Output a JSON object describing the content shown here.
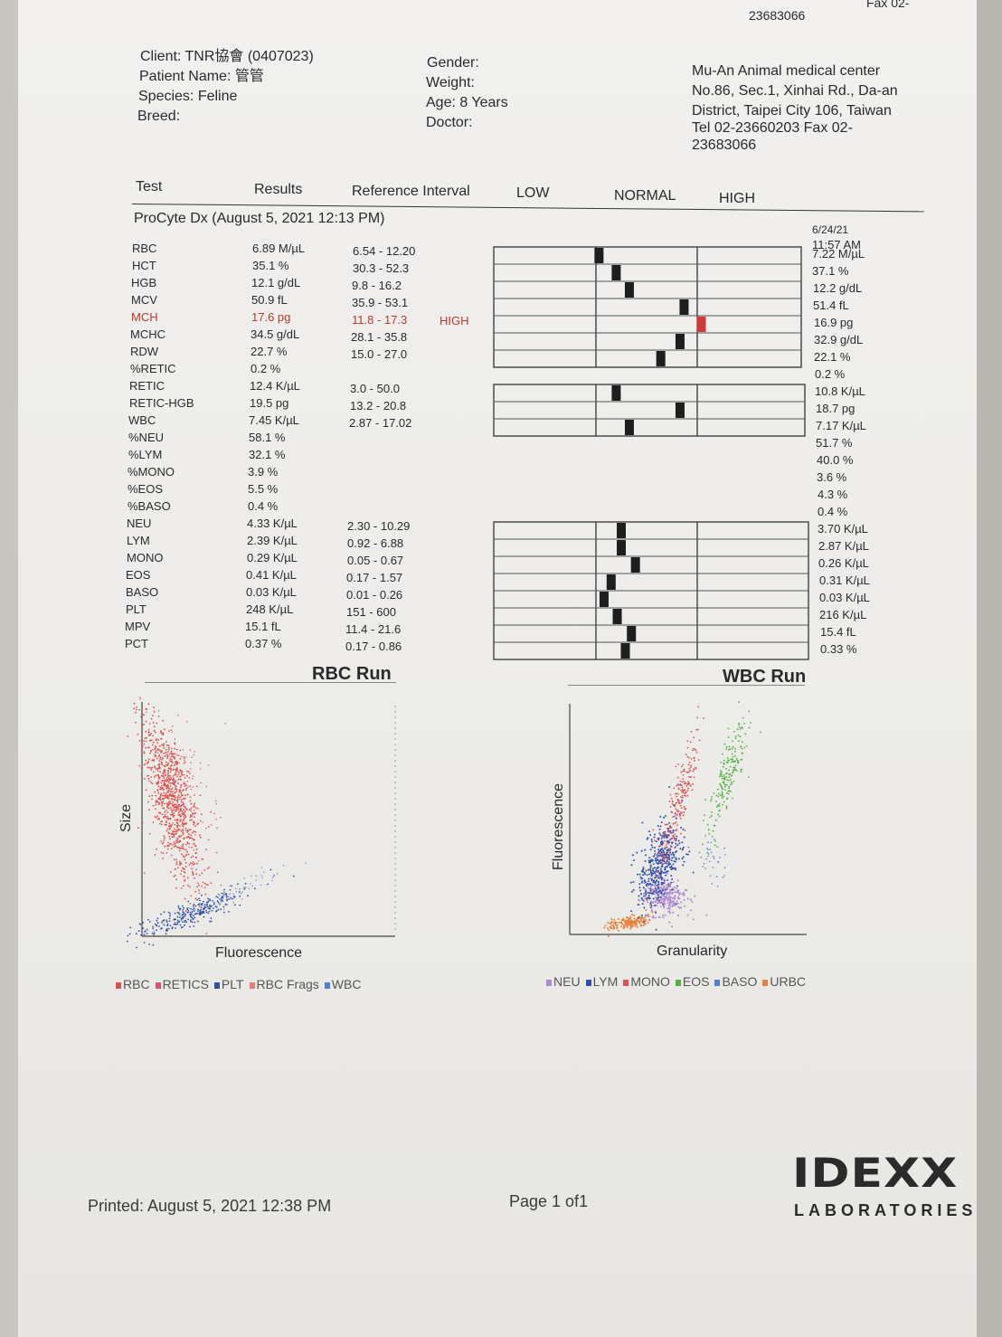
{
  "fax_header": {
    "line1": "Fax 02-",
    "line2": "23683066"
  },
  "patient": {
    "client": "Client: TNR協會 (0407023)",
    "name": "Patient Name: 管管",
    "species": "Species: Feline",
    "breed": "Breed:"
  },
  "details": {
    "gender": "Gender:",
    "weight": "Weight:",
    "age": "Age: 8 Years",
    "doctor": "Doctor:"
  },
  "clinic": {
    "name": "Mu-An Animal medical center",
    "addr1": "No.86, Sec.1, Xinhai Rd., Da-an",
    "addr2": "District, Taipei City 106, Taiwan",
    "phone": "Tel 02-23660203  Fax 02-",
    "fax": "23683066"
  },
  "columns": {
    "test": "Test",
    "results": "Results",
    "ref": "Reference Interval",
    "low": "LOW",
    "normal": "NORMAL",
    "high": "HIGH"
  },
  "run": {
    "title": "ProCyte Dx (August 5, 2021 12:13 PM)",
    "prev_date": "6/24/21",
    "prev_time": "11:57 AM"
  },
  "rows": [
    {
      "test": "RBC",
      "result": "6.89 M/µL",
      "ref": "6.54 - 12.20",
      "flag": "",
      "prev": "7.22 M/µL",
      "pos": 0.03
    },
    {
      "test": "HCT",
      "result": "35.1 %",
      "ref": "30.3 - 52.3",
      "flag": "",
      "prev": "37.1 %",
      "pos": 0.2
    },
    {
      "test": "HGB",
      "result": "12.1 g/dL",
      "ref": "9.8 - 16.2",
      "flag": "",
      "prev": "12.2 g/dL",
      "pos": 0.33
    },
    {
      "test": "MCV",
      "result": "50.9 fL",
      "ref": "35.9 - 53.1",
      "flag": "",
      "prev": "51.4 fL",
      "pos": 0.87
    },
    {
      "test": "MCH",
      "result": "17.6 pg",
      "ref": "11.8 - 17.3",
      "flag": "HIGH",
      "prev": "16.9 pg",
      "pos": 1.04
    },
    {
      "test": "MCHC",
      "result": "34.5 g/dL",
      "ref": "28.1 - 35.8",
      "flag": "",
      "prev": "32.9 g/dL",
      "pos": 0.83
    },
    {
      "test": "RDW",
      "result": "22.7 %",
      "ref": "15.0 - 27.0",
      "flag": "",
      "prev": "22.1 %",
      "pos": 0.64
    },
    {
      "test": "%RETIC",
      "result": "0.2 %",
      "ref": "",
      "flag": "",
      "prev": "0.2 %",
      "pos": null
    },
    {
      "test": "RETIC",
      "result": "12.4 K/µL",
      "ref": "3.0 - 50.0",
      "flag": "",
      "prev": "10.8 K/µL",
      "pos": 0.2
    },
    {
      "test": "RETIC-HGB",
      "result": "19.5 pg",
      "ref": "13.2 - 20.8",
      "flag": "",
      "prev": "18.7 pg",
      "pos": 0.83
    },
    {
      "test": "WBC",
      "result": "7.45 K/µL",
      "ref": "2.87 - 17.02",
      "flag": "",
      "prev": "7.17 K/µL",
      "pos": 0.33
    },
    {
      "test": "%NEU",
      "result": "58.1 %",
      "ref": "",
      "flag": "",
      "prev": "51.7 %",
      "pos": null
    },
    {
      "test": "%LYM",
      "result": "32.1 %",
      "ref": "",
      "flag": "",
      "prev": "40.0 %",
      "pos": null
    },
    {
      "test": "%MONO",
      "result": "3.9 %",
      "ref": "",
      "flag": "",
      "prev": "3.6 %",
      "pos": null
    },
    {
      "test": "%EOS",
      "result": "5.5 %",
      "ref": "",
      "flag": "",
      "prev": "4.3 %",
      "pos": null
    },
    {
      "test": "%BASO",
      "result": "0.4 %",
      "ref": "",
      "flag": "",
      "prev": "0.4 %",
      "pos": null
    },
    {
      "test": "NEU",
      "result": "4.33 K/µL",
      "ref": "2.30 - 10.29",
      "flag": "",
      "prev": "3.70 K/µL",
      "pos": 0.25
    },
    {
      "test": "LYM",
      "result": "2.39 K/µL",
      "ref": "0.92 - 6.88",
      "flag": "",
      "prev": "2.87 K/µL",
      "pos": 0.25
    },
    {
      "test": "MONO",
      "result": "0.29 K/µL",
      "ref": "0.05 - 0.67",
      "flag": "",
      "prev": "0.26 K/µL",
      "pos": 0.39
    },
    {
      "test": "EOS",
      "result": "0.41 K/µL",
      "ref": "0.17 - 1.57",
      "flag": "",
      "prev": "0.31 K/µL",
      "pos": 0.15
    },
    {
      "test": "BASO",
      "result": "0.03 K/µL",
      "ref": "0.01 - 0.26",
      "flag": "",
      "prev": "0.03 K/µL",
      "pos": 0.08
    },
    {
      "test": "PLT",
      "result": "248 K/µL",
      "ref": "151 - 600",
      "flag": "",
      "prev": "216 K/µL",
      "pos": 0.21
    },
    {
      "test": "MPV",
      "result": "15.1 fL",
      "ref": "11.4 - 21.6",
      "flag": "",
      "prev": "15.4 fL",
      "pos": 0.35
    },
    {
      "test": "PCT",
      "result": "0.37 %",
      "ref": "0.17 - 0.86",
      "flag": "",
      "prev": "0.33 %",
      "pos": 0.29
    }
  ],
  "rbc_run": {
    "title": "RBC Run",
    "xlabel": "Fluorescence",
    "ylabel": "Size",
    "legend": [
      {
        "label": "RBC",
        "color": "#e05050"
      },
      {
        "label": "RETICS",
        "color": "#e05070"
      },
      {
        "label": "PLT",
        "color": "#3050b0"
      },
      {
        "label": "RBC Frags",
        "color": "#e08080"
      },
      {
        "label": "WBC",
        "color": "#5080d0"
      }
    ]
  },
  "wbc_run": {
    "title": "WBC Run",
    "xlabel": "Granularity",
    "ylabel": "Fluorescence",
    "legend": [
      {
        "label": "NEU",
        "color": "#b08ad0"
      },
      {
        "label": "LYM",
        "color": "#3050b0"
      },
      {
        "label": "MONO",
        "color": "#e05050"
      },
      {
        "label": "EOS",
        "color": "#50b040"
      },
      {
        "label": "BASO",
        "color": "#5080d0"
      },
      {
        "label": "URBC",
        "color": "#e8803a"
      }
    ]
  },
  "footer": {
    "printed": "Printed: August 5, 2021 12:38 PM",
    "page": "Page 1 of1"
  },
  "logo": {
    "main": "IDEXX",
    "sub": "LABORATORIES"
  }
}
